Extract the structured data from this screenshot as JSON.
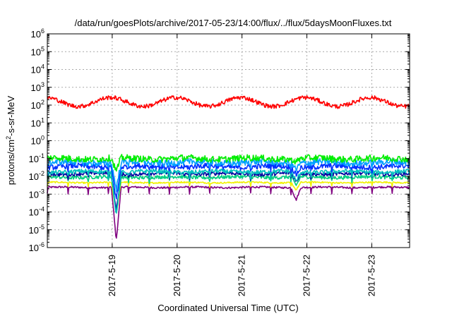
{
  "chart_data": {
    "type": "line",
    "title": "/data/run/goesPlots/archive/2017-05-23/14:00/flux/../flux/5daysMoonFluxes.txt",
    "xlabel": "Coordinated Universal Time (UTC)",
    "ylabel": {
      "pre": "protons/cm",
      "sup": "2",
      "post": "-s-sr-MeV"
    },
    "yscale": "log",
    "ylim_exponents": [
      -6,
      6
    ],
    "y_ticks": [
      {
        "base": "10",
        "exp": "-6"
      },
      {
        "base": "10",
        "exp": "-5"
      },
      {
        "base": "10",
        "exp": "-4"
      },
      {
        "base": "10",
        "exp": "-3"
      },
      {
        "base": "10",
        "exp": "-2"
      },
      {
        "base": "10",
        "exp": "-1"
      },
      {
        "base": "10",
        "exp": "0"
      },
      {
        "base": "10",
        "exp": "1"
      },
      {
        "base": "10",
        "exp": "2"
      },
      {
        "base": "10",
        "exp": "3"
      },
      {
        "base": "10",
        "exp": "4"
      },
      {
        "base": "10",
        "exp": "5"
      },
      {
        "base": "10",
        "exp": "6"
      }
    ],
    "xlim_dates": [
      "2017-05-18 00:00",
      "2017-05-23 14:00"
    ],
    "x_tick_labels": [
      "2017-5-19",
      "2017-5-20",
      "2017-5-21",
      "2017-5-22",
      "2017-5-23"
    ],
    "x_tick_dates": [
      "2017-05-19 00:00",
      "2017-05-20 00:00",
      "2017-05-21 00:00",
      "2017-05-22 00:00",
      "2017-05-23 00:00"
    ],
    "grid": true,
    "dips": [
      {
        "date": "2017-05-19 01:30",
        "depth_decades": 3.0
      },
      {
        "date": "2017-05-21 20:00",
        "depth_decades": 0.7
      }
    ],
    "series": [
      {
        "color": "#ff0000",
        "base": 150,
        "noise_decades": 0.12,
        "wave_decades": 0.25,
        "dip_scale": 0.0
      },
      {
        "color": "#00ee00",
        "base": 0.1,
        "noise_decades": 0.18,
        "wave_decades": 0.05,
        "dip_scale": 0.25
      },
      {
        "color": "#00a0ff",
        "base": 0.06,
        "noise_decades": 0.18,
        "wave_decades": 0.05,
        "dip_scale": 0.5
      },
      {
        "color": "#0030ff",
        "base": 0.035,
        "noise_decades": 0.15,
        "wave_decades": 0.05,
        "dip_scale": 0.6
      },
      {
        "color": "#00c0c0",
        "base": 0.018,
        "noise_decades": 0.12,
        "wave_decades": 0.04,
        "dip_scale": 0.8
      },
      {
        "color": "#0000a0",
        "base": 0.014,
        "noise_decades": 0.1,
        "wave_decades": 0.04,
        "dip_scale": 0.7
      },
      {
        "color": "#00d080",
        "base": 0.009,
        "noise_decades": 0.1,
        "wave_decades": 0.03,
        "dip_scale": 0.7
      },
      {
        "color": "#f0f000",
        "base": 0.0045,
        "noise_decades": 0.04,
        "wave_decades": 0.02,
        "dip_scale": 0.6
      },
      {
        "color": "#800080",
        "base": 0.0024,
        "noise_decades": 0.05,
        "wave_decades": 0.02,
        "dip_scale": 1.0
      }
    ]
  }
}
